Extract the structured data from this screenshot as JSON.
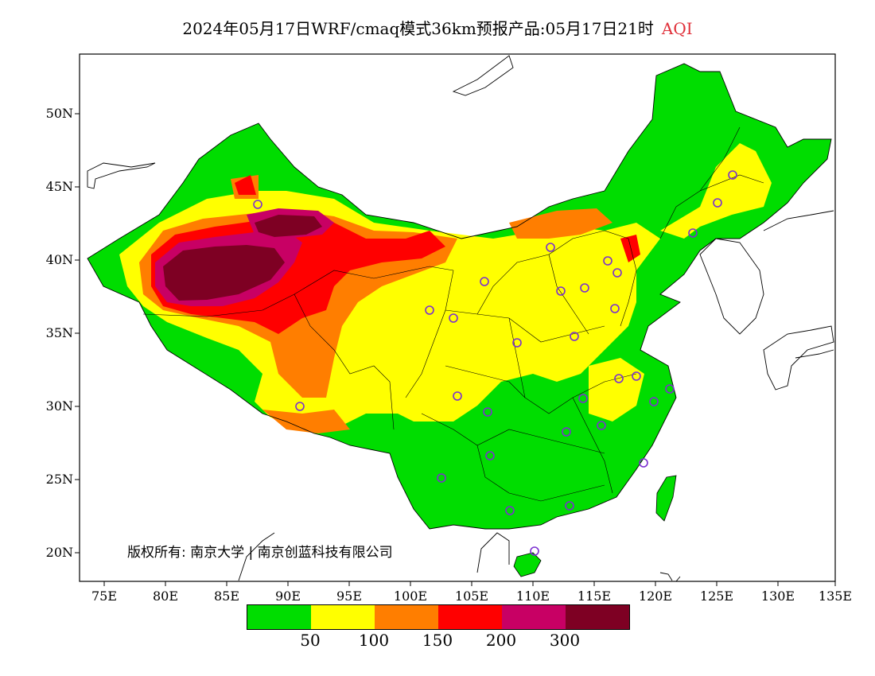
{
  "title": "2024年05月17日WRF/cmaq模式36km预报产品:05月17日21时",
  "variable": "AQI",
  "copyright": "版权所有: 南京大学 | 南京创蓝科技有限公司",
  "lat_labels": [
    "50N",
    "45N",
    "40N",
    "35N",
    "30N",
    "25N",
    "20N"
  ],
  "lon_labels": [
    "75E",
    "80E",
    "85E",
    "90E",
    "95E",
    "100E",
    "105E",
    "110E",
    "115E",
    "120E",
    "125E",
    "130E",
    "135E"
  ],
  "legend": {
    "colors": [
      "#00dd00",
      "#ffff00",
      "#ff7e00",
      "#ff0000",
      "#c80064",
      "#7e0023"
    ],
    "ticks": [
      "50",
      "100",
      "150",
      "200",
      "300"
    ]
  },
  "icons": {
    "station": "station-circle-icon"
  }
}
